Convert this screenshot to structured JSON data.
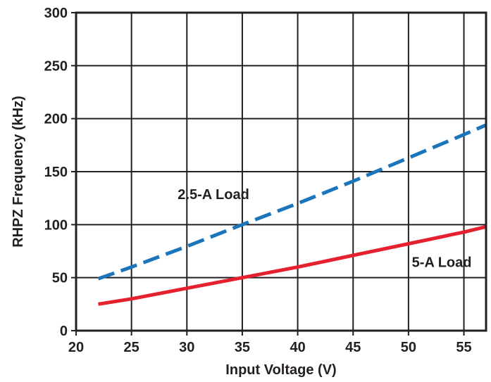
{
  "chart_data": {
    "type": "line",
    "title": "",
    "xlabel": "Input Voltage (V)",
    "ylabel": "RHPZ Frequency (kHz)",
    "xlim": [
      20,
      57
    ],
    "ylim": [
      0,
      300
    ],
    "xticks": [
      20,
      25,
      30,
      35,
      40,
      45,
      50,
      55
    ],
    "yticks": [
      0,
      50,
      100,
      150,
      200,
      250,
      300
    ],
    "grid": true,
    "legend": "none",
    "series": [
      {
        "name": "2.5-A Load",
        "color": "#1a75bb",
        "style": "dashed",
        "x": [
          22,
          25,
          30,
          35,
          40,
          45,
          50,
          55,
          57
        ],
        "y": [
          49,
          60,
          79.5,
          100,
          120,
          141,
          163,
          185,
          194
        ]
      },
      {
        "name": "5-A Load",
        "color": "#e5212e",
        "style": "solid",
        "x": [
          22,
          25,
          30,
          35,
          40,
          45,
          50,
          55,
          57
        ],
        "y": [
          25,
          30,
          40,
          50,
          60,
          71,
          82,
          93,
          98
        ]
      }
    ]
  }
}
